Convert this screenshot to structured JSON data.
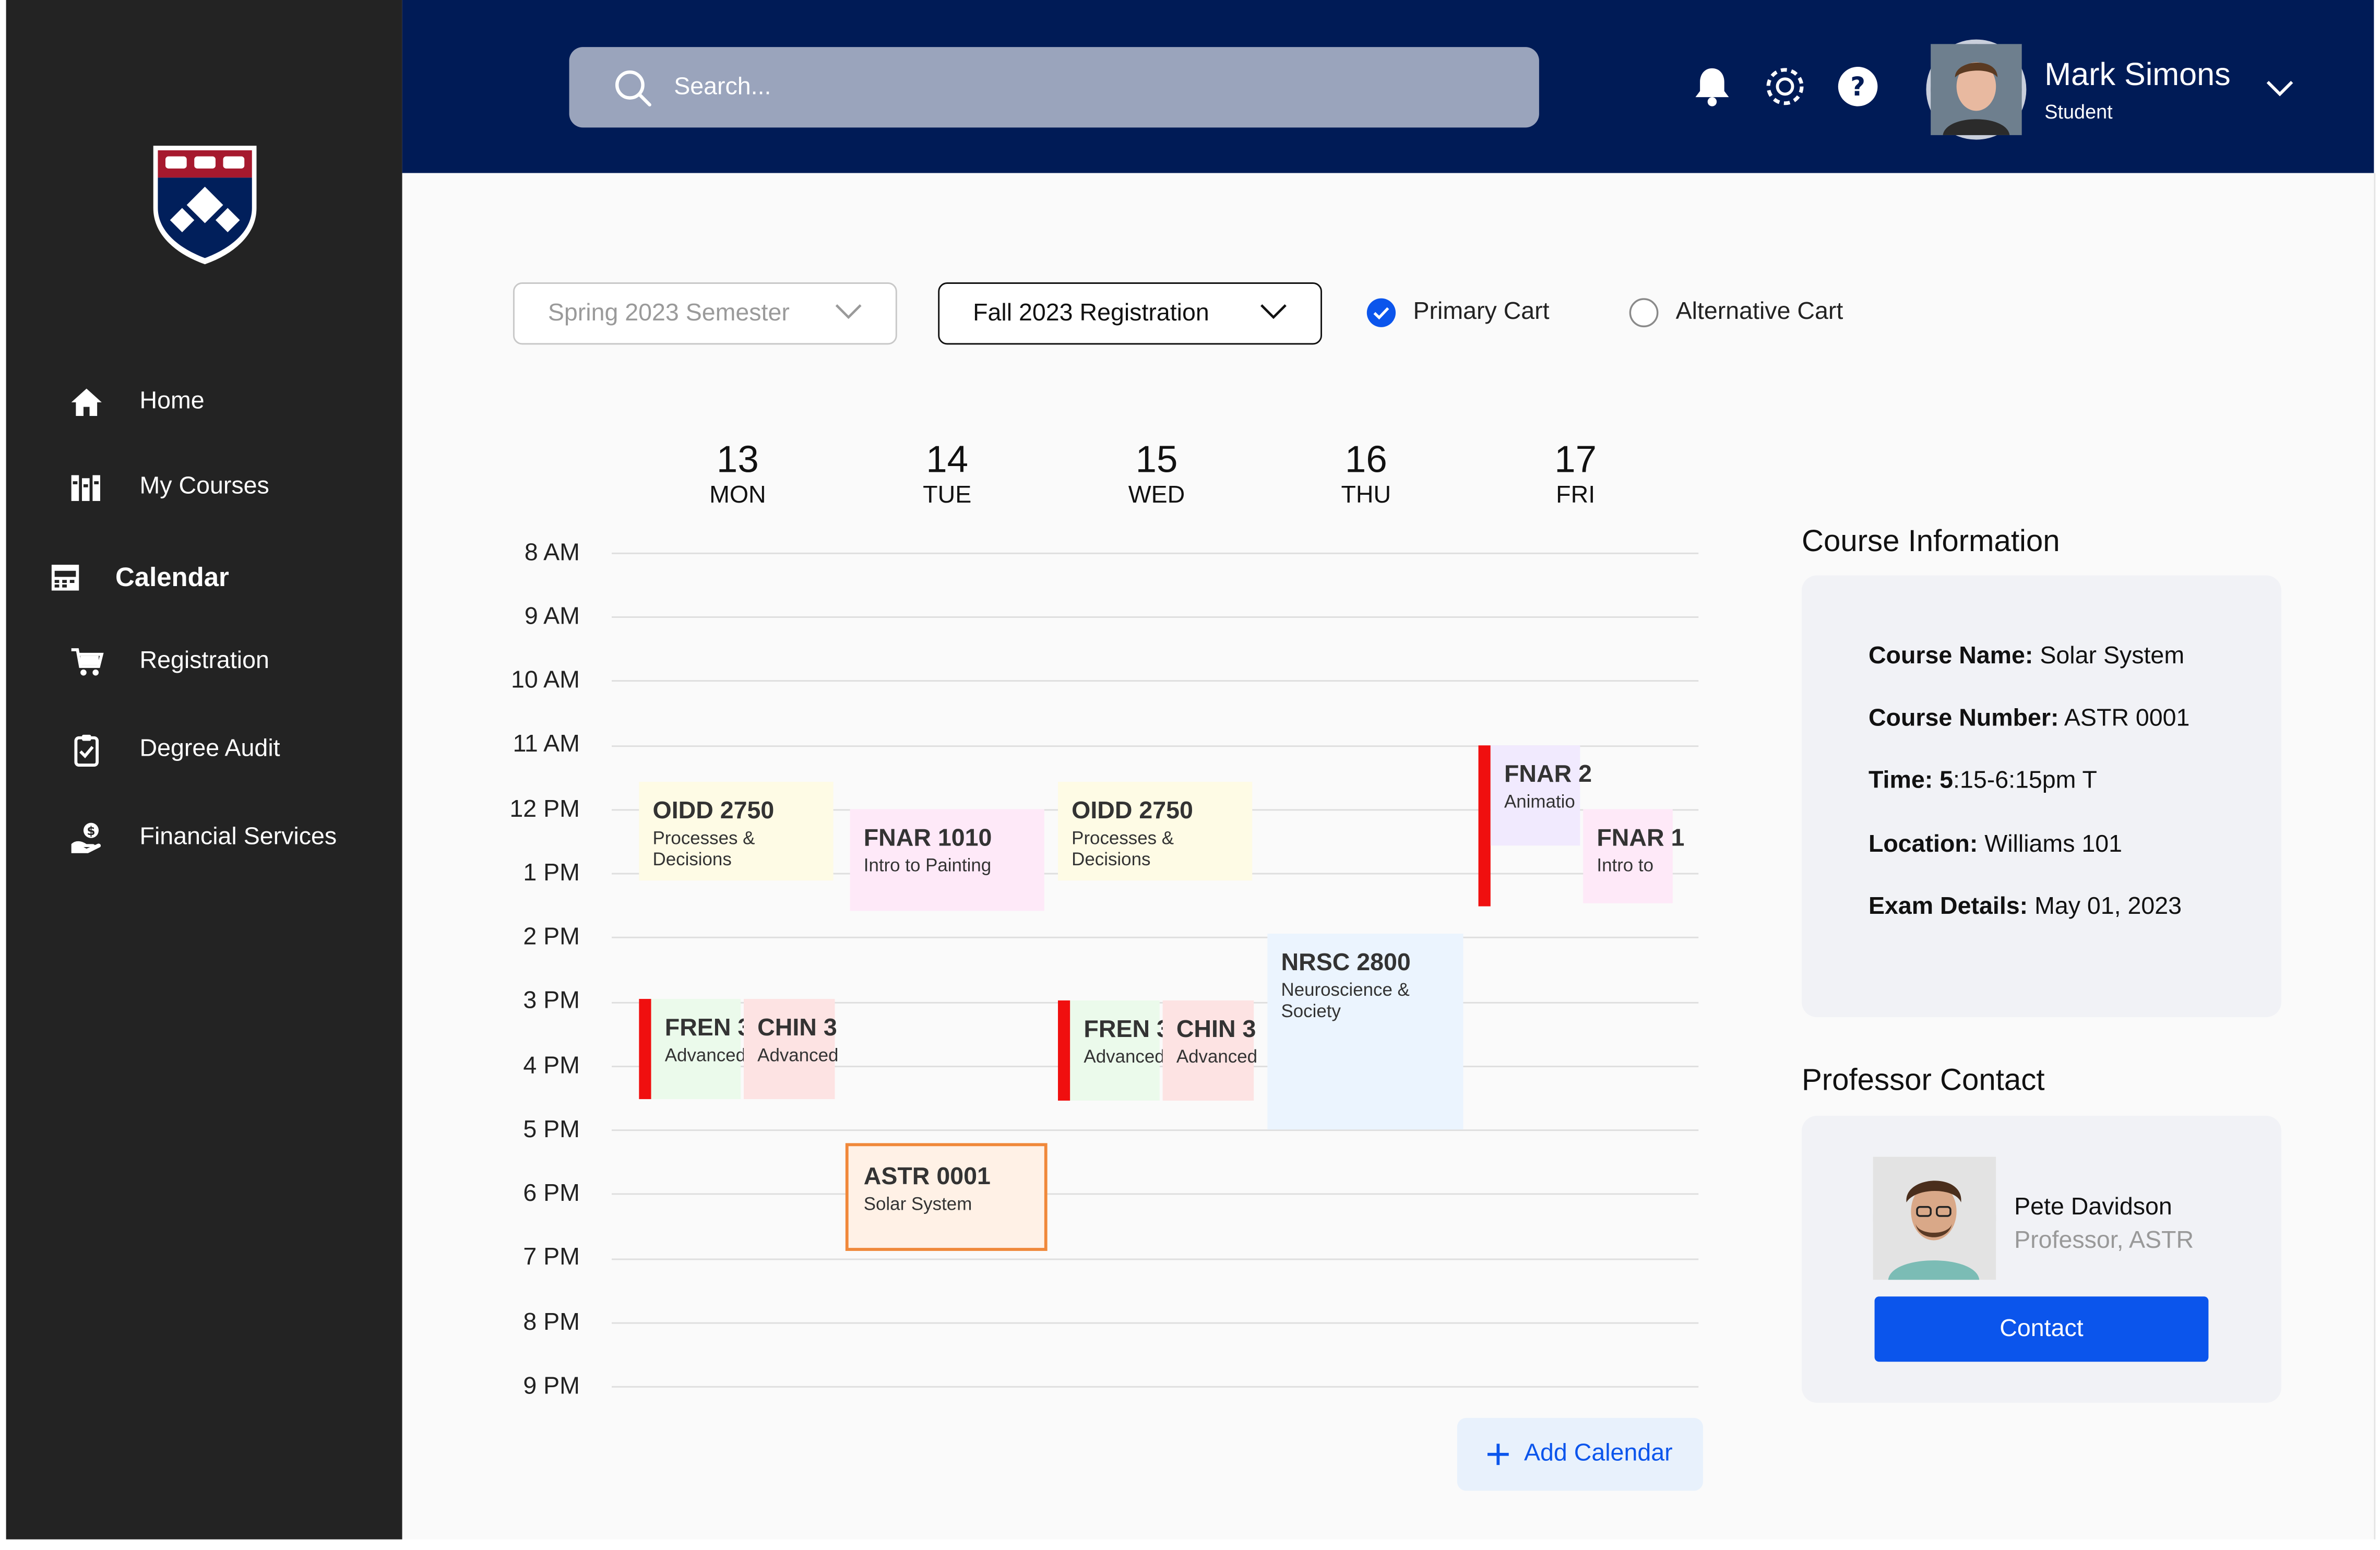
{
  "search": {
    "placeholder": "Search..."
  },
  "user": {
    "name": "Mark Simons",
    "role": "Student"
  },
  "sidebar": {
    "items": [
      {
        "label": "Home",
        "icon": "home-icon"
      },
      {
        "label": "My Courses",
        "icon": "books-icon"
      },
      {
        "label": "Calendar",
        "icon": "calendar-icon"
      },
      {
        "label": "Registration",
        "icon": "cart-icon"
      },
      {
        "label": "Degree Audit",
        "icon": "clipboard-check-icon"
      },
      {
        "label": "Financial Services",
        "icon": "money-hand-icon"
      }
    ]
  },
  "filters": {
    "semester": "Spring 2023 Semester",
    "registration": "Fall 2023 Registration",
    "primary_cart": "Primary Cart",
    "alternative_cart": "Alternative Cart"
  },
  "days": [
    {
      "num": "13",
      "name": "MON"
    },
    {
      "num": "14",
      "name": "TUE"
    },
    {
      "num": "15",
      "name": "WED"
    },
    {
      "num": "16",
      "name": "THU"
    },
    {
      "num": "17",
      "name": "FRI"
    }
  ],
  "hours": [
    "8 AM",
    "9 AM",
    "10 AM",
    "11 AM",
    "12 PM",
    "1 PM",
    "2 PM",
    "3 PM",
    "4 PM",
    "5 PM",
    "6 PM",
    "7 PM",
    "8 PM",
    "9 PM"
  ],
  "events": [
    {
      "code": "OIDD 2750",
      "name": "Processes & Decisions"
    },
    {
      "code": "FNAR 1010",
      "name": "Intro to Painting"
    },
    {
      "code": "OIDD 2750",
      "name": "Processes & Decisions"
    },
    {
      "code": "NRSC 2800",
      "name": "Neuroscience & Society"
    },
    {
      "code": "FNAR 2",
      "name": "Animatio"
    },
    {
      "code": "FNAR 1",
      "name": "Intro to"
    },
    {
      "code": "FREN 3",
      "name": "Advanced"
    },
    {
      "code": "CHIN 3",
      "name": "Advanced"
    },
    {
      "code": "FREN 3",
      "name": "Advanced"
    },
    {
      "code": "CHIN 3",
      "name": "Advanced"
    },
    {
      "code": "ASTR 0001",
      "name": "Solar System"
    }
  ],
  "add_calendar": "Add Calendar",
  "course_info": {
    "title": "Course Information",
    "rows": [
      {
        "label": "Course Name:",
        "value": "Solar System"
      },
      {
        "label": "Course Number:",
        "value": "ASTR 0001"
      },
      {
        "label": "Time: 5",
        "value": ":15-6:15pm T"
      },
      {
        "label": "Location:",
        "value": "Williams 101"
      },
      {
        "label": "Exam Details:",
        "value": "May 01, 2023"
      }
    ]
  },
  "professor": {
    "title": "Professor Contact",
    "name": "Pete Davidson",
    "role": "Professor, ASTR",
    "contact_label": "Contact"
  },
  "colors": {
    "topbar": "#001b56",
    "sidebar": "#232323",
    "accent": "#0b55ec",
    "conflict": "#f00f0f",
    "selected_event_border": "#f0883a"
  }
}
